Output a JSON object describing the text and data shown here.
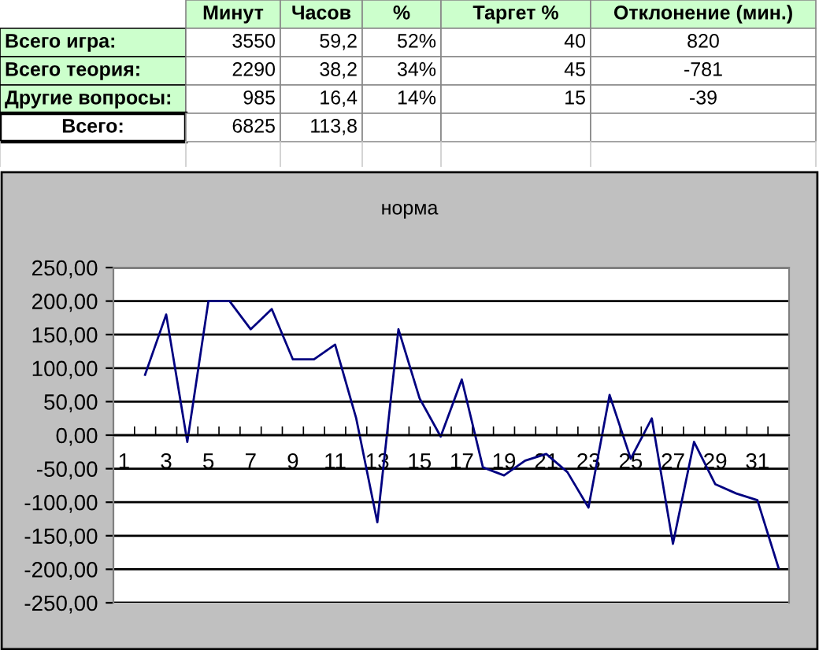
{
  "chart_data": [
    {
      "type": "other",
      "categories": [
        "Минут",
        "Часов",
        "%",
        "Таргет %",
        "Отклонение (мин.)"
      ],
      "y_categories": [
        "Всего игра:",
        "Всего теория:",
        "Другие вопросы:",
        "Всего:"
      ],
      "cell_labels": [
        [
          "3550",
          "59,2",
          "52%",
          "40",
          "820"
        ],
        [
          "2290",
          "38,2",
          "34%",
          "45",
          "-781"
        ],
        [
          "985",
          "16,4",
          "14%",
          "15",
          "-39"
        ],
        [
          "6825",
          "113,8",
          null,
          null,
          null
        ]
      ]
    },
    {
      "type": "line",
      "title": "норма",
      "categories": [
        "1",
        null,
        "3",
        null,
        "5",
        null,
        "7",
        null,
        "9",
        null,
        "11",
        null,
        "13",
        null,
        "15",
        null,
        "17",
        null,
        "19",
        null,
        "21",
        null,
        "23",
        null,
        "25",
        null,
        "27",
        null,
        "29",
        null,
        "31",
        null
      ],
      "series": [
        {
          "color": "#000080",
          "values": [
            null,
            90,
            180,
            -10,
            200,
            200,
            158,
            188,
            113,
            113,
            135,
            25,
            -130,
            158,
            55,
            -2,
            83,
            -48,
            -60,
            -38,
            -28,
            -55,
            -108,
            60,
            -35,
            25,
            -162,
            -10,
            -73,
            -87,
            -97,
            -198
          ]
        }
      ],
      "ylim": [
        -250,
        250
      ],
      "yticks": [
        {
          "value": -250,
          "label": "-250,00"
        },
        {
          "value": -200,
          "label": "-200,00"
        },
        {
          "value": -150,
          "label": "-150,00"
        },
        {
          "value": -100,
          "label": "-100,00"
        },
        {
          "value": -50,
          "label": "-50,00"
        },
        {
          "value": 0,
          "label": "0,00"
        },
        {
          "value": 50,
          "label": "50,00"
        },
        {
          "value": 100,
          "label": "100,00"
        },
        {
          "value": 150,
          "label": "150,00"
        },
        {
          "value": 200,
          "label": "200,00"
        },
        {
          "value": 250,
          "label": "250,00"
        }
      ],
      "grid": "y",
      "legend": false,
      "marker": "none",
      "line_style": "solid"
    }
  ]
}
